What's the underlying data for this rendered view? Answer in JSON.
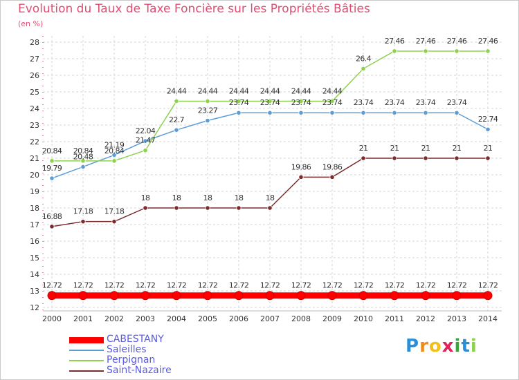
{
  "chart_data": {
    "type": "line",
    "title": "Evolution du Taux de Taxe Foncière sur les Propriétés Bâties",
    "ylabel": "(en %)",
    "xlabel": "",
    "categories": [
      "2000",
      "2001",
      "2002",
      "2003",
      "2004",
      "2005",
      "2006",
      "2007",
      "2008",
      "2009",
      "2010",
      "2011",
      "2012",
      "2013",
      "2014"
    ],
    "ylim": [
      12,
      28
    ],
    "yticks": [
      12,
      13,
      14,
      15,
      16,
      17,
      18,
      19,
      20,
      21,
      22,
      23,
      24,
      25,
      26,
      27,
      28
    ],
    "series": [
      {
        "name": "CABESTANY",
        "color": "#ff0000",
        "values": [
          12.72,
          12.72,
          12.72,
          12.72,
          12.72,
          12.72,
          12.72,
          12.72,
          12.72,
          12.72,
          12.72,
          12.72,
          12.72,
          12.72,
          12.72
        ],
        "labels": [
          "12.72",
          "12.72",
          "12.72",
          "12.72",
          "12.72",
          "12.72",
          "12.72",
          "12.72",
          "12.72",
          "12.72",
          "12.72",
          "12.72",
          "12.72",
          "12.72",
          "12.72"
        ]
      },
      {
        "name": "Saleilles",
        "color": "#5c9dd6",
        "values": [
          19.79,
          20.48,
          21.19,
          22.04,
          22.7,
          23.27,
          23.74,
          23.74,
          23.74,
          23.74,
          23.74,
          23.74,
          23.74,
          23.74,
          22.74
        ],
        "labels": [
          "19.79",
          "20.48",
          "21.19",
          "22.04",
          "22.7",
          "23.27",
          "23.74",
          "23.74",
          "23.74",
          "23.74",
          "23.74",
          "23.74",
          "23.74",
          "23.74",
          "22.74"
        ]
      },
      {
        "name": "Perpignan",
        "color": "#8fd14f",
        "values": [
          20.84,
          20.84,
          20.84,
          21.47,
          24.44,
          24.44,
          24.44,
          24.44,
          24.44,
          24.44,
          26.4,
          27.46,
          27.46,
          27.46,
          27.46
        ],
        "labels": [
          "20.84",
          "20.84",
          "20.84",
          "21.47",
          "24.44",
          "24.44",
          "24.44",
          "24.44",
          "24.44",
          "24.44",
          "26.4",
          "27.46",
          "27.46",
          "27.46",
          "27.46"
        ]
      },
      {
        "name": "Saint-Nazaire",
        "color": "#7a2b2b",
        "values": [
          16.88,
          17.18,
          17.18,
          18,
          18,
          18,
          18,
          18,
          19.86,
          19.86,
          21,
          21,
          21,
          21,
          21
        ],
        "labels": [
          "16.88",
          "17.18",
          "17.18",
          "18",
          "18",
          "18",
          "18",
          "18",
          "19.86",
          "19.86",
          "21",
          "21",
          "21",
          "21",
          "21"
        ]
      }
    ],
    "legend_position": "bottom-left"
  },
  "logo": {
    "text": "Proxiti",
    "letters": [
      {
        "ch": "P",
        "color": "#2a8fd8"
      },
      {
        "ch": "r",
        "color": "#f08c1e"
      },
      {
        "ch": "o",
        "color": "#f2c019"
      },
      {
        "ch": "x",
        "color": "#e0245a"
      },
      {
        "ch": "i",
        "color": "#3aa53a"
      },
      {
        "ch": "t",
        "color": "#2a8fd8"
      },
      {
        "ch": "i",
        "color": "#8fd14f"
      }
    ]
  }
}
